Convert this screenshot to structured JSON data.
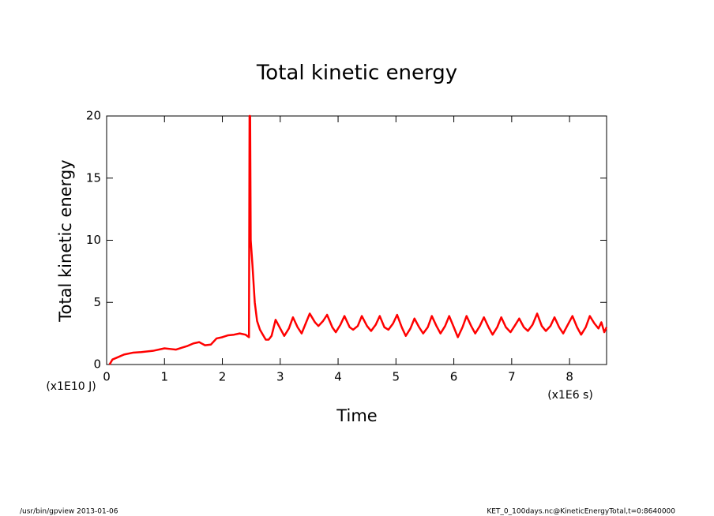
{
  "chart_data": {
    "type": "line",
    "title": "Total kinetic energy",
    "x_label": "Time",
    "y_label": "Total kinetic energy",
    "x_unit": "(x1E6 s)",
    "y_unit": "(x1E10 J)",
    "footer_left": "/usr/bin/gpview  2013-01-06",
    "footer_right": "KET_0_100days.nc@KineticEnergyTotal,t=0:8640000",
    "xlim": [
      0,
      8.64
    ],
    "ylim": [
      0,
      20
    ],
    "xticks": [
      0,
      1,
      2,
      3,
      4,
      5,
      6,
      7,
      8
    ],
    "yticks": [
      0,
      5,
      10,
      15,
      20
    ],
    "grid": false,
    "x": [
      0.05,
      0.1,
      0.2,
      0.3,
      0.45,
      0.6,
      0.8,
      1.0,
      1.1,
      1.2,
      1.3,
      1.4,
      1.5,
      1.6,
      1.7,
      1.8,
      1.9,
      2.0,
      2.1,
      2.2,
      2.3,
      2.4,
      2.46,
      2.47,
      2.475,
      2.48,
      2.49,
      2.52,
      2.56,
      2.6,
      2.65,
      2.7,
      2.75,
      2.8,
      2.85,
      2.92,
      3.0,
      3.07,
      3.15,
      3.22,
      3.3,
      3.37,
      3.44,
      3.51,
      3.6,
      3.66,
      3.74,
      3.81,
      3.9,
      3.96,
      4.04,
      4.11,
      4.2,
      4.26,
      4.34,
      4.41,
      4.5,
      4.57,
      4.65,
      4.72,
      4.8,
      4.87,
      4.95,
      5.02,
      5.1,
      5.17,
      5.25,
      5.32,
      5.4,
      5.47,
      5.55,
      5.62,
      5.7,
      5.77,
      5.85,
      5.92,
      6.0,
      6.07,
      6.15,
      6.22,
      6.3,
      6.37,
      6.45,
      6.52,
      6.6,
      6.67,
      6.75,
      6.82,
      6.9,
      6.98,
      7.05,
      7.13,
      7.21,
      7.28,
      7.36,
      7.44,
      7.52,
      7.59,
      7.67,
      7.74,
      7.82,
      7.89,
      7.97,
      8.05,
      8.13,
      8.2,
      8.28,
      8.35,
      8.43,
      8.5,
      8.55,
      8.6,
      8.64
    ],
    "series": [
      {
        "name": "Total kinetic energy",
        "color": "#ff0000",
        "values": [
          0,
          0.4,
          0.6,
          0.8,
          0.95,
          1.0,
          1.1,
          1.3,
          1.25,
          1.2,
          1.35,
          1.5,
          1.7,
          1.8,
          1.55,
          1.6,
          2.1,
          2.2,
          2.35,
          2.4,
          2.5,
          2.4,
          2.2,
          20,
          13,
          20,
          10,
          8,
          5,
          3.5,
          2.8,
          2.4,
          2.0,
          2.0,
          2.3,
          3.6,
          2.9,
          2.3,
          2.9,
          3.8,
          3.0,
          2.5,
          3.3,
          4.1,
          3.4,
          3.1,
          3.5,
          4.0,
          3.0,
          2.6,
          3.2,
          3.9,
          3.0,
          2.8,
          3.1,
          3.9,
          3.1,
          2.7,
          3.2,
          3.9,
          3.0,
          2.8,
          3.3,
          4.0,
          3.0,
          2.3,
          2.9,
          3.7,
          3.0,
          2.5,
          3.0,
          3.9,
          3.1,
          2.5,
          3.1,
          3.9,
          3.0,
          2.2,
          3.0,
          3.9,
          3.1,
          2.5,
          3.1,
          3.8,
          3.0,
          2.4,
          3.0,
          3.8,
          3.0,
          2.6,
          3.1,
          3.7,
          3.0,
          2.7,
          3.2,
          4.1,
          3.1,
          2.7,
          3.1,
          3.8,
          3.0,
          2.5,
          3.2,
          3.9,
          3.0,
          2.4,
          3.0,
          3.9,
          3.3,
          2.9,
          3.4,
          2.6,
          3.0
        ]
      }
    ]
  }
}
